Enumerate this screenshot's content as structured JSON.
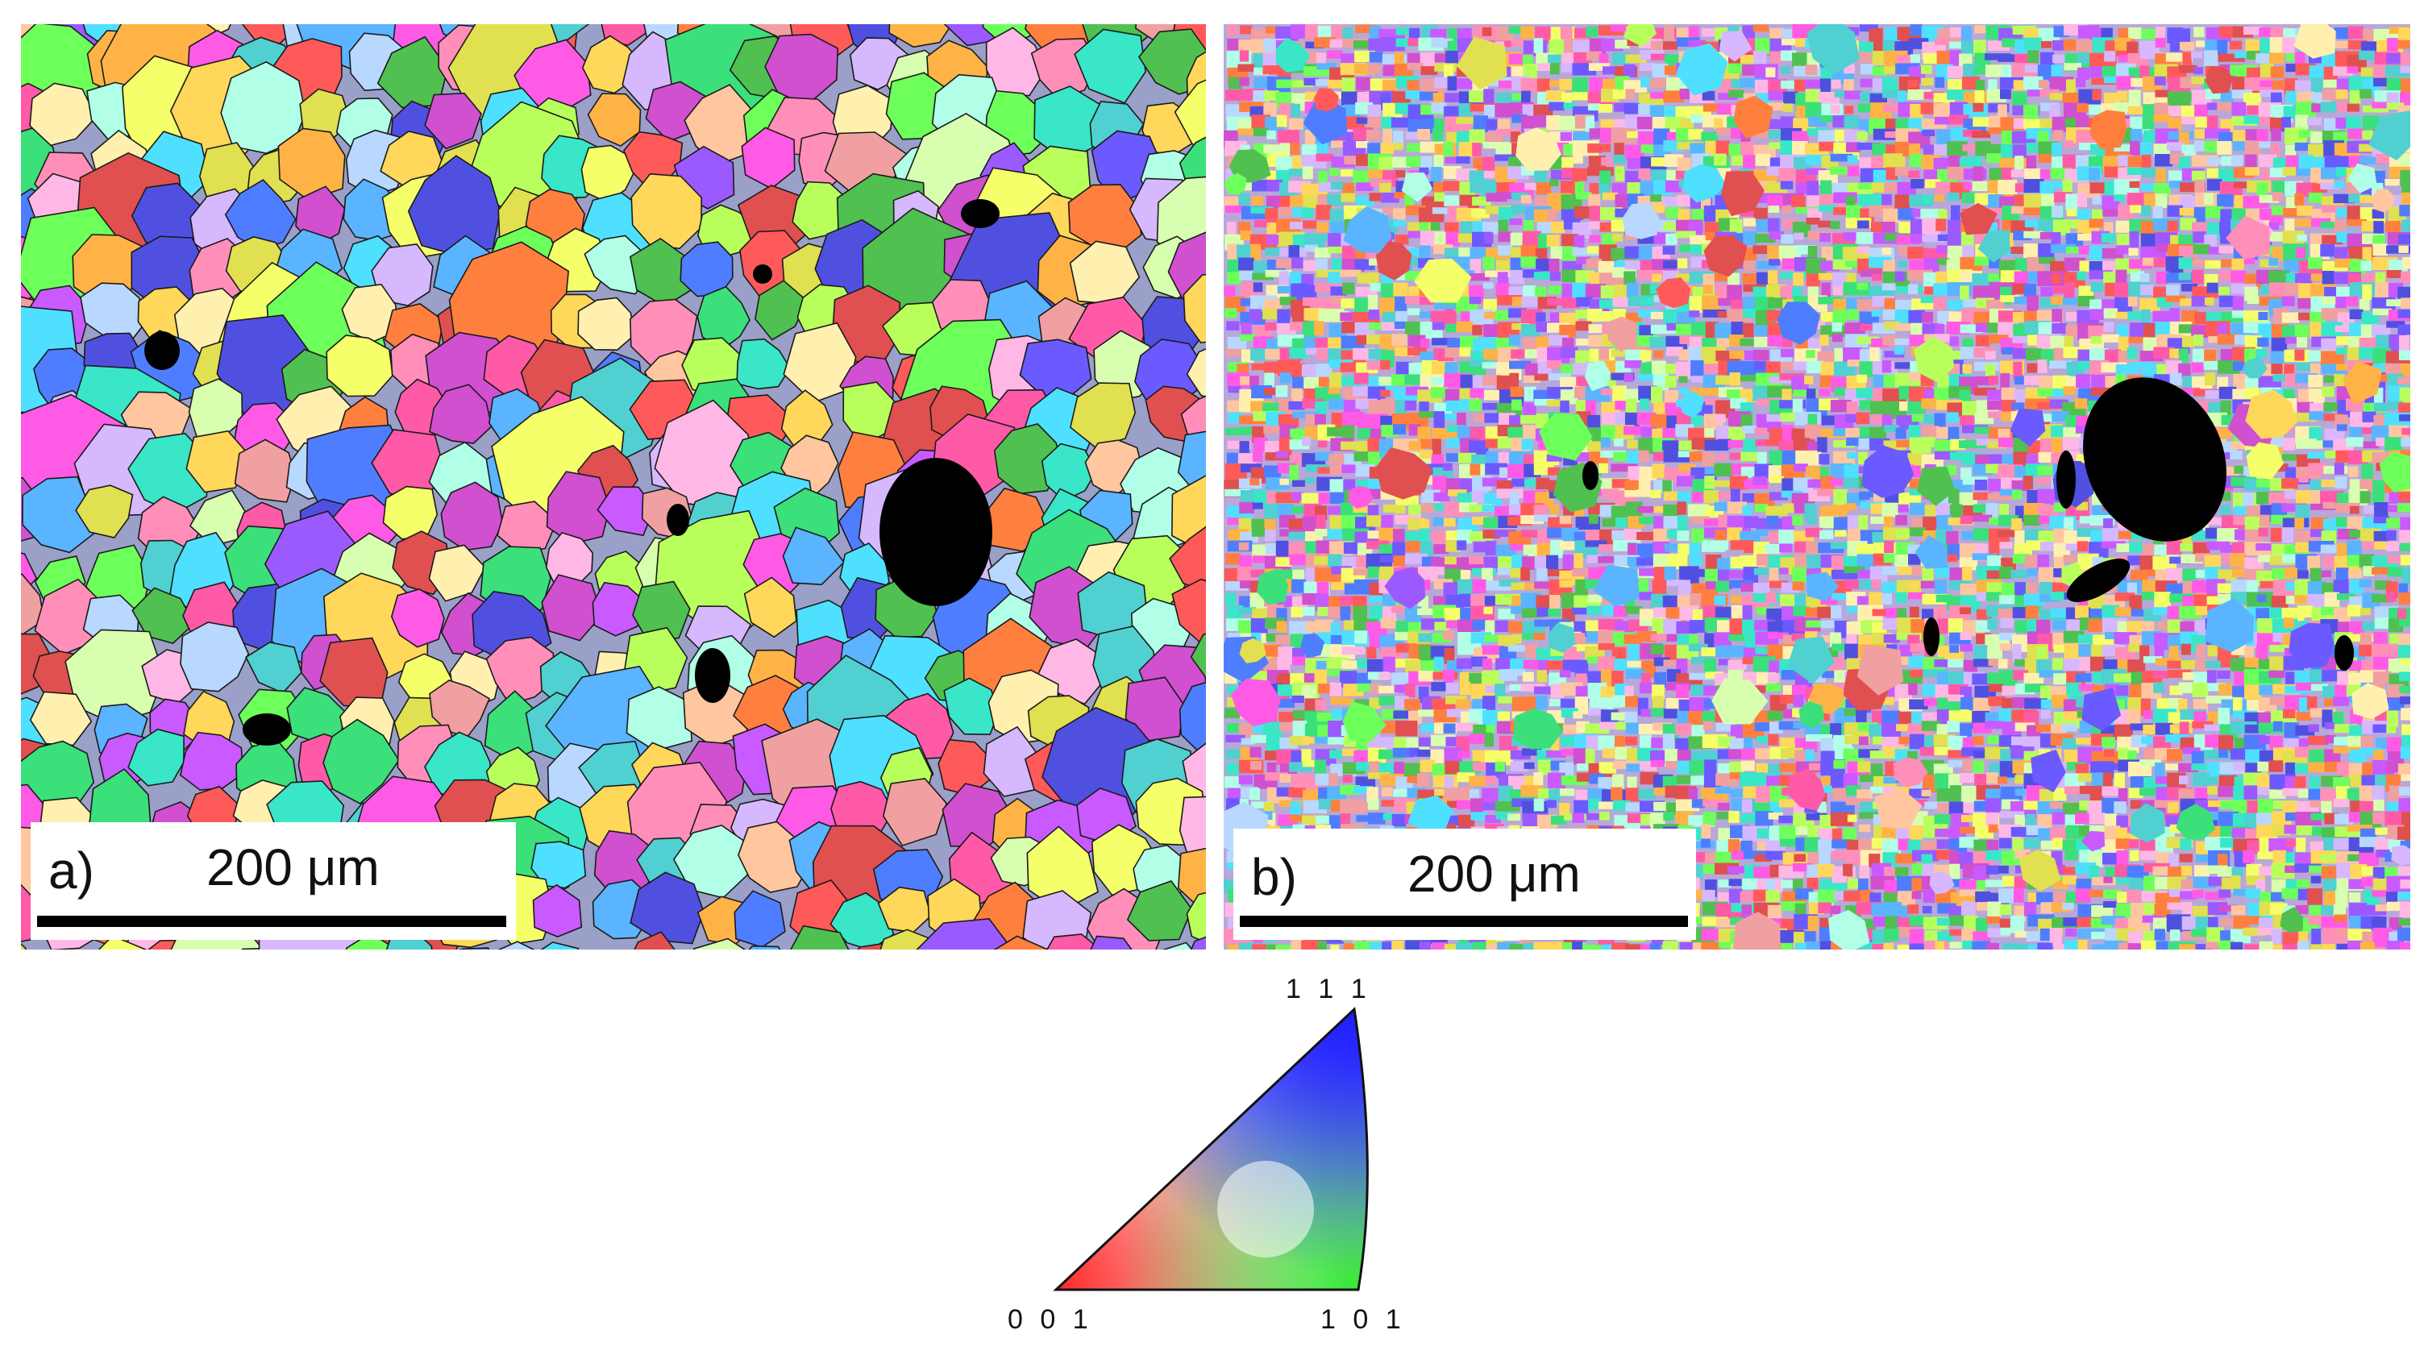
{
  "figure": {
    "panel_a": {
      "label": "a)",
      "scale_text": "200 μm"
    },
    "panel_b": {
      "label": "b)",
      "scale_text": "200 μm"
    }
  },
  "legend": {
    "top_label": "1 1 1",
    "bottom_left_label": "0 0 1",
    "bottom_right_label": "1 0 1"
  },
  "colors": {
    "pore": "#000000",
    "grain_boundary": "#1a1a1a",
    "ipf_001": "#ff2a2a",
    "ipf_101": "#22dd22",
    "ipf_111": "#3344ff"
  }
}
